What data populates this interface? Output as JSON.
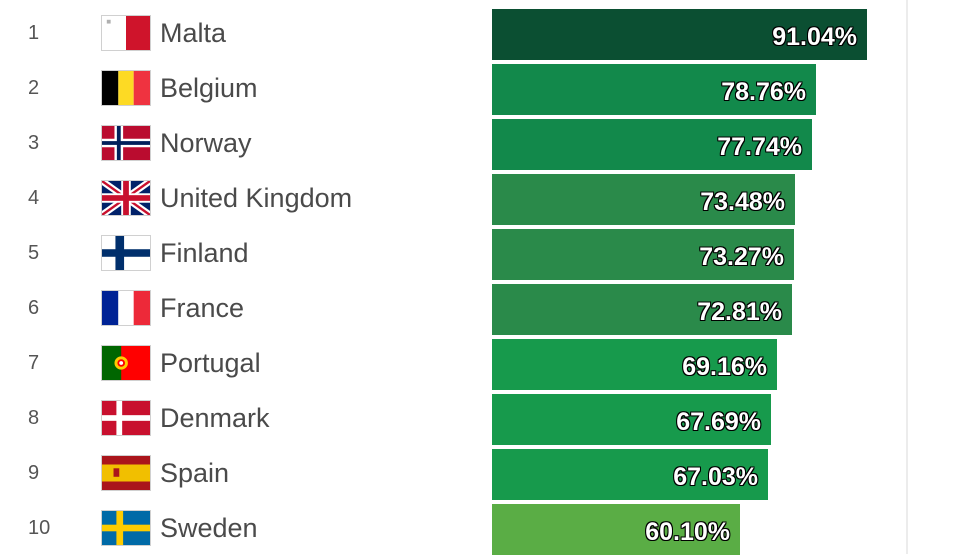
{
  "chart_data": {
    "type": "bar",
    "orientation": "horizontal",
    "categories": [
      "Malta",
      "Belgium",
      "Norway",
      "United Kingdom",
      "Finland",
      "France",
      "Portugal",
      "Denmark",
      "Spain",
      "Sweden"
    ],
    "series": [
      {
        "values": [
          91.04,
          78.76,
          77.74,
          73.48,
          73.27,
          72.81,
          69.16,
          67.69,
          67.03,
          60.1
        ]
      }
    ],
    "xlim": [
      0,
      100
    ],
    "grid": false,
    "legend": "none"
  },
  "rows": [
    {
      "rank": "1",
      "country": "Malta",
      "flag": "malta-flag-icon",
      "value": 91.04,
      "label": "91.04%",
      "color": "#0b4f32"
    },
    {
      "rank": "2",
      "country": "Belgium",
      "flag": "belgium-flag-icon",
      "value": 78.76,
      "label": "78.76%",
      "color": "#12894b"
    },
    {
      "rank": "3",
      "country": "Norway",
      "flag": "norway-flag-icon",
      "value": 77.74,
      "label": "77.74%",
      "color": "#12894b"
    },
    {
      "rank": "4",
      "country": "United Kingdom",
      "flag": "uk-flag-icon",
      "value": 73.48,
      "label": "73.48%",
      "color": "#2a8a4a"
    },
    {
      "rank": "5",
      "country": "Finland",
      "flag": "finland-flag-icon",
      "value": 73.27,
      "label": "73.27%",
      "color": "#2a8a4a"
    },
    {
      "rank": "6",
      "country": "France",
      "flag": "france-flag-icon",
      "value": 72.81,
      "label": "72.81%",
      "color": "#2a8a4a"
    },
    {
      "rank": "7",
      "country": "Portugal",
      "flag": "portugal-flag-icon",
      "value": 69.16,
      "label": "69.16%",
      "color": "#179a4c"
    },
    {
      "rank": "8",
      "country": "Denmark",
      "flag": "denmark-flag-icon",
      "value": 67.69,
      "label": "67.69%",
      "color": "#179a4c"
    },
    {
      "rank": "9",
      "country": "Spain",
      "flag": "spain-flag-icon",
      "value": 67.03,
      "label": "67.03%",
      "color": "#179a4c"
    },
    {
      "rank": "10",
      "country": "Sweden",
      "flag": "sweden-flag-icon",
      "value": 60.1,
      "label": "60.10%",
      "color": "#5aad45"
    }
  ]
}
